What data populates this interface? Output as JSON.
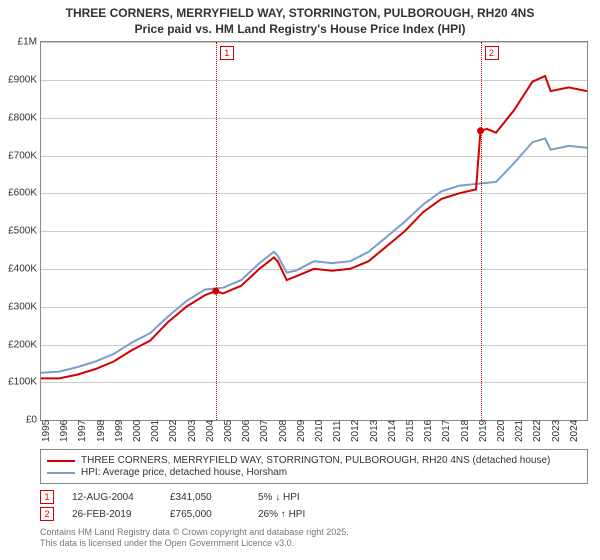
{
  "title_line1": "THREE CORNERS, MERRYFIELD WAY, STORRINGTON, PULBOROUGH, RH20 4NS",
  "title_line2": "Price paid vs. HM Land Registry's House Price Index (HPI)",
  "chart": {
    "type": "line",
    "ylim": [
      0,
      1000000
    ],
    "xlim": [
      1995,
      2025
    ],
    "ytick_step": 100000,
    "y_labels": [
      "£0",
      "£100K",
      "£200K",
      "£300K",
      "£400K",
      "£500K",
      "£600K",
      "£700K",
      "£800K",
      "£900K",
      "£1M"
    ],
    "x_labels": [
      "1995",
      "1996",
      "1997",
      "1998",
      "1999",
      "2000",
      "2001",
      "2002",
      "2003",
      "2004",
      "2005",
      "2006",
      "2007",
      "2008",
      "2009",
      "2010",
      "2011",
      "2012",
      "2013",
      "2014",
      "2015",
      "2016",
      "2017",
      "2018",
      "2019",
      "2020",
      "2021",
      "2022",
      "2023",
      "2024"
    ],
    "background_color": "#ffffff",
    "grid_color": "#cccccc",
    "series": {
      "price_paid": {
        "color": "#d40000",
        "line_width": 2,
        "label": "THREE CORNERS, MERRYFIELD WAY, STORRINGTON, PULBOROUGH, RH20 4NS (detached house)",
        "points": [
          [
            1995,
            110000
          ],
          [
            1996,
            110000
          ],
          [
            1997,
            120000
          ],
          [
            1998,
            135000
          ],
          [
            1999,
            155000
          ],
          [
            2000,
            185000
          ],
          [
            2001,
            210000
          ],
          [
            2002,
            260000
          ],
          [
            2003,
            300000
          ],
          [
            2004,
            330000
          ],
          [
            2004.6,
            341050
          ],
          [
            2005,
            335000
          ],
          [
            2006,
            355000
          ],
          [
            2007,
            400000
          ],
          [
            2007.8,
            430000
          ],
          [
            2008,
            420000
          ],
          [
            2008.5,
            370000
          ],
          [
            2009,
            380000
          ],
          [
            2010,
            400000
          ],
          [
            2011,
            395000
          ],
          [
            2012,
            400000
          ],
          [
            2013,
            420000
          ],
          [
            2014,
            460000
          ],
          [
            2015,
            500000
          ],
          [
            2016,
            550000
          ],
          [
            2017,
            585000
          ],
          [
            2018,
            600000
          ],
          [
            2018.9,
            610000
          ],
          [
            2019.15,
            765000
          ],
          [
            2019.5,
            770000
          ],
          [
            2020,
            760000
          ],
          [
            2021,
            820000
          ],
          [
            2022,
            895000
          ],
          [
            2022.7,
            910000
          ],
          [
            2023,
            870000
          ],
          [
            2024,
            880000
          ],
          [
            2025,
            870000
          ]
        ]
      },
      "hpi": {
        "color": "#7a9ec9",
        "line_width": 2,
        "label": "HPI: Average price, detached house, Horsham",
        "points": [
          [
            1995,
            125000
          ],
          [
            1996,
            128000
          ],
          [
            1997,
            140000
          ],
          [
            1998,
            155000
          ],
          [
            1999,
            175000
          ],
          [
            2000,
            205000
          ],
          [
            2001,
            230000
          ],
          [
            2002,
            275000
          ],
          [
            2003,
            315000
          ],
          [
            2004,
            345000
          ],
          [
            2005,
            350000
          ],
          [
            2006,
            370000
          ],
          [
            2007,
            415000
          ],
          [
            2007.8,
            445000
          ],
          [
            2008,
            435000
          ],
          [
            2008.5,
            390000
          ],
          [
            2009,
            395000
          ],
          [
            2010,
            420000
          ],
          [
            2011,
            415000
          ],
          [
            2012,
            420000
          ],
          [
            2013,
            445000
          ],
          [
            2014,
            485000
          ],
          [
            2015,
            525000
          ],
          [
            2016,
            570000
          ],
          [
            2017,
            605000
          ],
          [
            2018,
            620000
          ],
          [
            2019,
            625000
          ],
          [
            2020,
            630000
          ],
          [
            2021,
            680000
          ],
          [
            2022,
            735000
          ],
          [
            2022.7,
            745000
          ],
          [
            2023,
            715000
          ],
          [
            2024,
            725000
          ],
          [
            2025,
            720000
          ]
        ]
      }
    },
    "markers": [
      {
        "idx": "1",
        "x": 2004.6,
        "color": "#d40000"
      },
      {
        "idx": "2",
        "x": 2019.15,
        "color": "#d40000"
      }
    ]
  },
  "events": [
    {
      "idx": "1",
      "date": "12-AUG-2004",
      "price": "£341,050",
      "pct": "5% ↓ HPI",
      "color": "#d40000"
    },
    {
      "idx": "2",
      "date": "26-FEB-2019",
      "price": "£765,000",
      "pct": "26% ↑ HPI",
      "color": "#d40000"
    }
  ],
  "attribution_line1": "Contains HM Land Registry data © Crown copyright and database right 2025.",
  "attribution_line2": "This data is licensed under the Open Government Licence v3.0."
}
